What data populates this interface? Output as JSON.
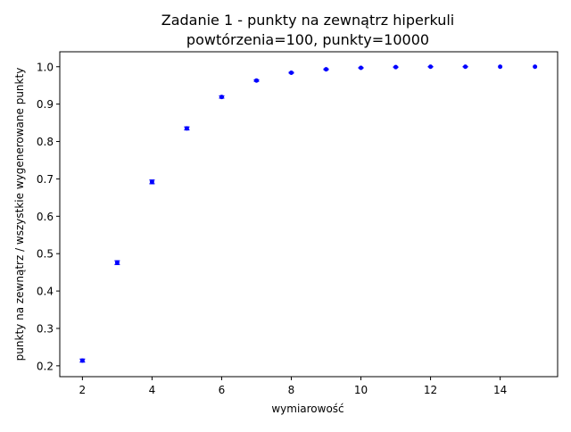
{
  "chart_data": {
    "type": "scatter",
    "title_line1": "Zadanie 1 - punkty na zewnątrz hiperkuli",
    "title_line2": "powtórzenia=100, punkty=10000",
    "xlabel": "wymiarowość",
    "ylabel": "punkty na zewnątrz / wszystkie wygenerowane punkty",
    "xlim": [
      1.35,
      15.65
    ],
    "ylim": [
      0.171,
      1.04
    ],
    "x_ticks": [
      2,
      4,
      6,
      8,
      10,
      12,
      14
    ],
    "x_tick_labels": [
      "2",
      "4",
      "6",
      "8",
      "10",
      "12",
      "14"
    ],
    "y_ticks": [
      0.2,
      0.3,
      0.4,
      0.5,
      0.6,
      0.7,
      0.8,
      0.9,
      1.0
    ],
    "y_tick_labels": [
      "0.2",
      "0.3",
      "0.4",
      "0.5",
      "0.6",
      "0.7",
      "0.8",
      "0.9",
      "1.0"
    ],
    "grid": false,
    "legend": "none",
    "series": [
      {
        "color": "#0000ff",
        "marker": "dot-with-errorbar",
        "x": [
          2,
          3,
          4,
          5,
          6,
          7,
          8,
          9,
          10,
          11,
          12,
          13,
          14,
          15
        ],
        "y": [
          0.214,
          0.476,
          0.692,
          0.835,
          0.919,
          0.963,
          0.984,
          0.993,
          0.997,
          0.999,
          1.0,
          1.0,
          1.0,
          1.0
        ],
        "yerr": [
          0.004,
          0.005,
          0.005,
          0.004,
          0.003,
          0.002,
          0.001,
          0.001,
          0.0005,
          0.0003,
          0.0002,
          0.0001,
          0.0,
          0.0
        ]
      }
    ]
  }
}
